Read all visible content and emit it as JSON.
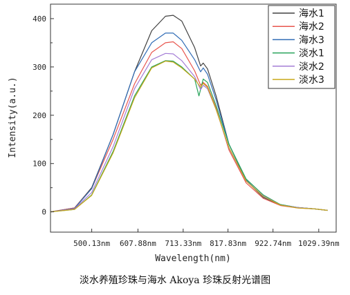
{
  "chart_data": {
    "type": "line",
    "caption": "淡水养殖珍珠与海水 Akoya 珍珠反射光谱图",
    "xlabel": "Wavelength(nm)",
    "ylabel": "Intensity(a.u.)",
    "x_ticks": [
      500.13,
      607.88,
      713.33,
      817.83,
      922.74,
      1029.39
    ],
    "x_tick_labels": [
      "500.13nm",
      "607.88nm",
      "713.33nm",
      "817.83nm",
      "922.74nm",
      "1029.39nm"
    ],
    "y_ticks": [
      0,
      100,
      200,
      300,
      400
    ],
    "xlim": [
      404,
      1070
    ],
    "ylim": [
      -42,
      430
    ],
    "legend_position": "top-right",
    "series": [
      {
        "name": "海水1",
        "color": "#404040",
        "points": [
          [
            404,
            0
          ],
          [
            460,
            8
          ],
          [
            500,
            50
          ],
          [
            550,
            160
          ],
          [
            600,
            290
          ],
          [
            640,
            375
          ],
          [
            672,
            405
          ],
          [
            690,
            407
          ],
          [
            710,
            395
          ],
          [
            740,
            340
          ],
          [
            754,
            302
          ],
          [
            760,
            308
          ],
          [
            770,
            296
          ],
          [
            790,
            240
          ],
          [
            820,
            140
          ],
          [
            860,
            65
          ],
          [
            900,
            30
          ],
          [
            940,
            14
          ],
          [
            980,
            9
          ],
          [
            1020,
            6
          ],
          [
            1050,
            3
          ]
        ]
      },
      {
        "name": "海水2",
        "color": "#e8544c",
        "points": [
          [
            404,
            0
          ],
          [
            460,
            8
          ],
          [
            500,
            48
          ],
          [
            550,
            150
          ],
          [
            600,
            265
          ],
          [
            640,
            330
          ],
          [
            672,
            350
          ],
          [
            690,
            352
          ],
          [
            710,
            338
          ],
          [
            740,
            292
          ],
          [
            754,
            262
          ],
          [
            760,
            268
          ],
          [
            770,
            260
          ],
          [
            790,
            215
          ],
          [
            820,
            128
          ],
          [
            860,
            60
          ],
          [
            900,
            28
          ],
          [
            940,
            13
          ],
          [
            980,
            8
          ],
          [
            1020,
            6
          ],
          [
            1050,
            3
          ]
        ]
      },
      {
        "name": "海水3",
        "color": "#2f6bb5",
        "points": [
          [
            404,
            0
          ],
          [
            460,
            7
          ],
          [
            500,
            48
          ],
          [
            550,
            160
          ],
          [
            600,
            290
          ],
          [
            640,
            350
          ],
          [
            672,
            370
          ],
          [
            690,
            370
          ],
          [
            710,
            355
          ],
          [
            740,
            315
          ],
          [
            754,
            290
          ],
          [
            760,
            298
          ],
          [
            770,
            285
          ],
          [
            790,
            232
          ],
          [
            820,
            140
          ],
          [
            860,
            66
          ],
          [
            900,
            31
          ],
          [
            940,
            15
          ],
          [
            980,
            9
          ],
          [
            1020,
            6
          ],
          [
            1050,
            3
          ]
        ]
      },
      {
        "name": "淡水1",
        "color": "#27a35a",
        "points": [
          [
            404,
            0
          ],
          [
            460,
            5
          ],
          [
            500,
            35
          ],
          [
            550,
            125
          ],
          [
            600,
            240
          ],
          [
            640,
            300
          ],
          [
            672,
            313
          ],
          [
            690,
            312
          ],
          [
            710,
            300
          ],
          [
            740,
            275
          ],
          [
            750,
            240
          ],
          [
            760,
            275
          ],
          [
            770,
            268
          ],
          [
            790,
            220
          ],
          [
            820,
            140
          ],
          [
            860,
            68
          ],
          [
            900,
            35
          ],
          [
            940,
            15
          ],
          [
            980,
            9
          ],
          [
            1020,
            6
          ],
          [
            1050,
            3
          ]
        ]
      },
      {
        "name": "淡水2",
        "color": "#a47cd6",
        "points": [
          [
            404,
            0
          ],
          [
            460,
            6
          ],
          [
            500,
            40
          ],
          [
            550,
            135
          ],
          [
            600,
            255
          ],
          [
            640,
            315
          ],
          [
            672,
            328
          ],
          [
            690,
            327
          ],
          [
            710,
            313
          ],
          [
            740,
            280
          ],
          [
            754,
            253
          ],
          [
            760,
            262
          ],
          [
            770,
            255
          ],
          [
            790,
            212
          ],
          [
            820,
            132
          ],
          [
            860,
            64
          ],
          [
            900,
            33
          ],
          [
            940,
            14
          ],
          [
            980,
            9
          ],
          [
            1020,
            6
          ],
          [
            1050,
            3
          ]
        ]
      },
      {
        "name": "淡水3",
        "color": "#c8a818",
        "points": [
          [
            404,
            0
          ],
          [
            460,
            5
          ],
          [
            500,
            34
          ],
          [
            550,
            122
          ],
          [
            600,
            236
          ],
          [
            640,
            298
          ],
          [
            672,
            312
          ],
          [
            690,
            310
          ],
          [
            710,
            298
          ],
          [
            740,
            275
          ],
          [
            754,
            258
          ],
          [
            760,
            266
          ],
          [
            770,
            258
          ],
          [
            790,
            212
          ],
          [
            820,
            133
          ],
          [
            860,
            64
          ],
          [
            900,
            32
          ],
          [
            940,
            14
          ],
          [
            980,
            8
          ],
          [
            1020,
            6
          ],
          [
            1050,
            3
          ]
        ]
      }
    ]
  }
}
